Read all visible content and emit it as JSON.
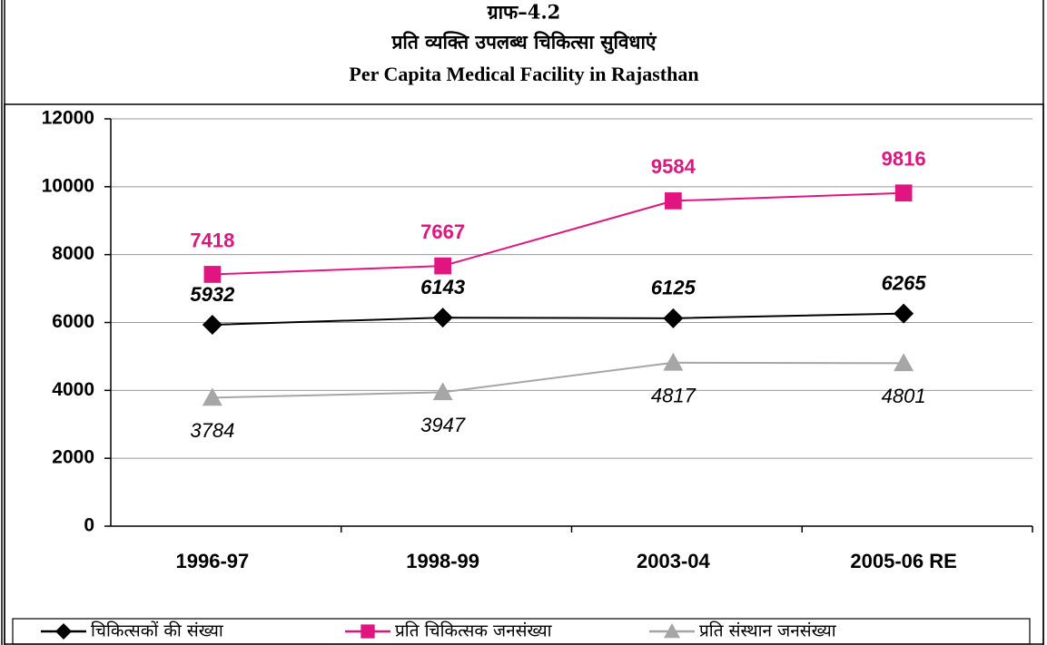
{
  "chart_data": {
    "type": "line",
    "title": "ग्राफ–4.2",
    "subtitle": "प्रति व्यक्ति उपलब्ध चिकित्सा सुविधाएं",
    "subtitle_en": "Per Capita Medical Facility in Rajasthan",
    "categories": [
      "1996-97",
      "1998-99",
      "2003-04",
      "2005-06 RE"
    ],
    "series": [
      {
        "name": "चिकित्सकों की संख्या",
        "color": "#000000",
        "marker": "diamond",
        "values": [
          5932,
          6143,
          6125,
          6265
        ]
      },
      {
        "name": "प्रति चिकित्सक जनसंख्या",
        "color": "#e0157f",
        "marker": "square",
        "values": [
          7418,
          7667,
          9584,
          9816
        ]
      },
      {
        "name": "प्रति संस्थान जनसंख्या",
        "color": "#a6a6a6",
        "marker": "triangle",
        "values": [
          3784,
          3947,
          4817,
          4801
        ]
      }
    ],
    "ylim": [
      0,
      12000
    ],
    "yticks": [
      0,
      2000,
      4000,
      6000,
      8000,
      10000,
      12000
    ],
    "grid": true
  }
}
